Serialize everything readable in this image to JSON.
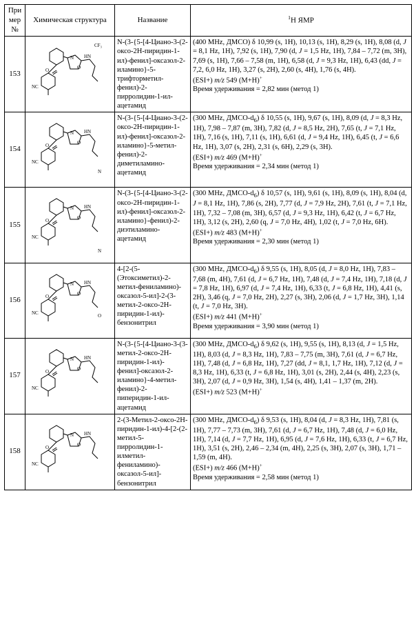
{
  "headers": {
    "num": "При мер №",
    "struct": "Химическая структура",
    "name": "Название",
    "nmr_label": "H ЯМР",
    "nmr_sup": "1"
  },
  "rows": [
    {
      "num": "153",
      "name": "N-(3-{5-[4-Циано-3-(2-оксо-2H-пиридин-1-ил)-фенил]-оксазол-2-иламино}-5-трифторметил-фенил)-2-пирролидин-1-ил-ацетамид",
      "nmr": "(400 MHz, ДМСО) δ 10,99 (s, 1H), 10,13 (s, 1H), 8,29 (s, 1H), 8,08 (d, J = 8,1 Hz, 1H), 7,92 (s, 1H), 7,90 (d, J = 1,5 Hz, 1H), 7,84 – 7,72 (m, 3H), 7,69 (s, 1H), 7,66 – 7,58 (m, 1H), 6,58 (d, J = 9,3 Hz, 1H), 6,43 (dd, J = 7,2, 6,0 Hz, 1H), 3,27 (s, 2H), 2,60 (s, 4H), 1,76 (s, 4H).\n(ESI+) m/z 549 (M+H)⁺\nВремя удерживания = 2,82 мин (метод 1)",
      "struct_detail": "CF3-phenyl isoxazole pyridinone nitrile pyrrolidine acetamide"
    },
    {
      "num": "154",
      "name": "N-(3-{5-[4-Циано-3-(2-оксо-2H-пиридин-1-ил)-фенил]-оксазол-2-иламино}-5-метил-фенил)-2-диметиламино-ацетамид",
      "nmr": "(300 MHz, ДМСО-d₆) δ 10,55 (s, 1H), 9,67 (s, 1H), 8,09 (d, J = 8,3 Hz, 1H), 7,98 – 7,87 (m, 3H), 7,82 (d, J = 8,5 Hz, 2H), 7,65 (t, J = 7,1 Hz, 1H), 7,16 (s, 1H), 7,11 (s, 1H), 6,61 (d, J = 9,4 Hz, 1H), 6,45 (t, J = 6,6 Hz, 1H), 3,07 (s, 2H), 2,31 (s, 6H), 2,29 (s, 3H).\n(ESI+) m/z 469 (M+H)⁺\nВремя удерживания = 2,34 мин (метод 1)",
      "struct_detail": "methyl-phenyl isoxazole pyridinone nitrile dimethylamino acetamide"
    },
    {
      "num": "155",
      "name": "N-(3-{5-[4-Циано-3-(2-оксо-2H-пиридин-1-ил)-фенил]-оксазол-2-иламино}-фенил)-2-диэтиламино-ацетамид",
      "nmr": "(300 MHz, ДМСО-d₆) δ 10,57 (s, 1H), 9,61 (s, 1H), 8,09 (s, 1H), 8,04 (d, J = 8,1 Hz, 1H), 7,86 (s, 2H), 7,77 (d, J = 7,9 Hz, 2H), 7,61 (t, J = 7,1 Hz, 1H), 7,32 – 7,08 (m, 3H), 6,57 (d, J = 9,3 Hz, 1H), 6,42 (t, J = 6,7 Hz, 1H), 3,12 (s, 2H), 2,60 (q, J = 7,0 Hz, 4H), 1,02 (t, J = 7,0 Hz, 6H).\n(ESI+) m/z 483 (M+H)⁺\nВремя удерживания = 2,30 мин (метод 1)",
      "struct_detail": "phenyl isoxazole pyridinone nitrile diethylamino acetamide"
    },
    {
      "num": "156",
      "name": "4-[2-(5-(Этоксиметил)-2-метил-фениламино)-оксазол-5-ил]-2-(3-метил-2-оксо-2H-пиридин-1-ил)-бензонитрил",
      "nmr": "(300 MHz, ДМСО-d₆) δ 9,55 (s, 1H), 8,05 (d, J = 8,0 Hz, 1H), 7,83 – 7,68 (m, 4H), 7,61 (d, J = 6,7 Hz, 1H), 7,48 (d, J = 7,4 Hz, 1H), 7,18 (d, J = 7,8 Hz, 1H), 6,97 (d, J = 7,4 Hz, 1H), 6,33 (t, J = 6,8 Hz, 1H), 4,41 (s, 2H), 3,46 (q, J = 7,0 Hz, 2H), 2,27 (s, 3H), 2,06 (d, J = 1,7 Hz, 3H), 1,14 (t, J = 7,0 Hz, 3H).\n(ESI+) m/z 441 (M+H)⁺\nВремя удерживания = 3,90 мин (метод 1)",
      "struct_detail": "ethoxymethyl methyl-phenyl oxazole methyl-pyridinone benzonitrile"
    },
    {
      "num": "157",
      "name": "N-(3-{5-[4-Циано-3-(3-метил-2-оксо-2H-пиридин-1-ил)-фенил]-оксазол-2-иламино}-4-метил-фенил)-2-пиперидин-1-ил-ацетамид",
      "nmr": "(300 MHz, ДМСО-d₆) δ 9,62 (s, 1H), 9,55 (s, 1H), 8,13 (d, J = 1,5 Hz, 1H), 8,03 (d, J = 8,3 Hz, 1H), 7,83 – 7,75 (m, 3H), 7,61 (d, J = 6,7 Hz, 1H), 7,48 (d, J = 6,8 Hz, 1H), 7,27 (dd, J = 8,1, 1,7 Hz, 1H), 7,12 (d, J = 8,3 Hz, 1H), 6,33 (t, J = 6,8 Hz, 1H), 3,01 (s, 2H), 2,44 (s, 4H), 2,23 (s, 3H), 2,07 (d, J = 0,9 Hz, 3H), 1,54 (s, 4H), 1,41 – 1,37 (m, 2H).\n(ESI+) m/z 523 (M+H)⁺",
      "struct_detail": "methyl-phenyl isoxazole methyl-pyridinone nitrile piperidine acetamide"
    },
    {
      "num": "158",
      "name": "2-(3-Метил-2-оксо-2H-пиридин-1-ил)-4-[2-(2-метил-5-пирролидин-1-илметил-фениламино)-оксазол-5-ил]-бензонитрил",
      "nmr": "(300 MHz, ДМСО-d₆) δ 9,53 (s, 1H), 8,04 (d, J = 8,3 Hz, 1H), 7,81 (s, 1H), 7,77 – 7,73 (m, 3H), 7,61 (d, J = 6,7 Hz, 1H), 7,48 (d, J = 6,0 Hz, 1H), 7,14 (d, J = 7,7 Hz, 1H), 6,95 (d, J = 7,6 Hz, 1H), 6,33 (t, J = 6,7 Hz, 1H), 3,51 (s, 2H), 2,46 – 2,34 (m, 4H), 2,25 (s, 3H), 2,07 (s, 3H), 1,71 – 1,59 (m, 4H).\n(ESI+) m/z 466 (M+H)⁺\nВремя удерживания = 2,58 мин (метод 1)",
      "struct_detail": "methyl pyridinone methyl-phenyl pyrrolidinylmethyl oxazole benzonitrile"
    }
  ],
  "styling": {
    "border_color": "#000000",
    "background": "#ffffff",
    "font_family": "Times New Roman",
    "cell_font_size_pt": 10.5,
    "header_font_size_pt": 11
  }
}
